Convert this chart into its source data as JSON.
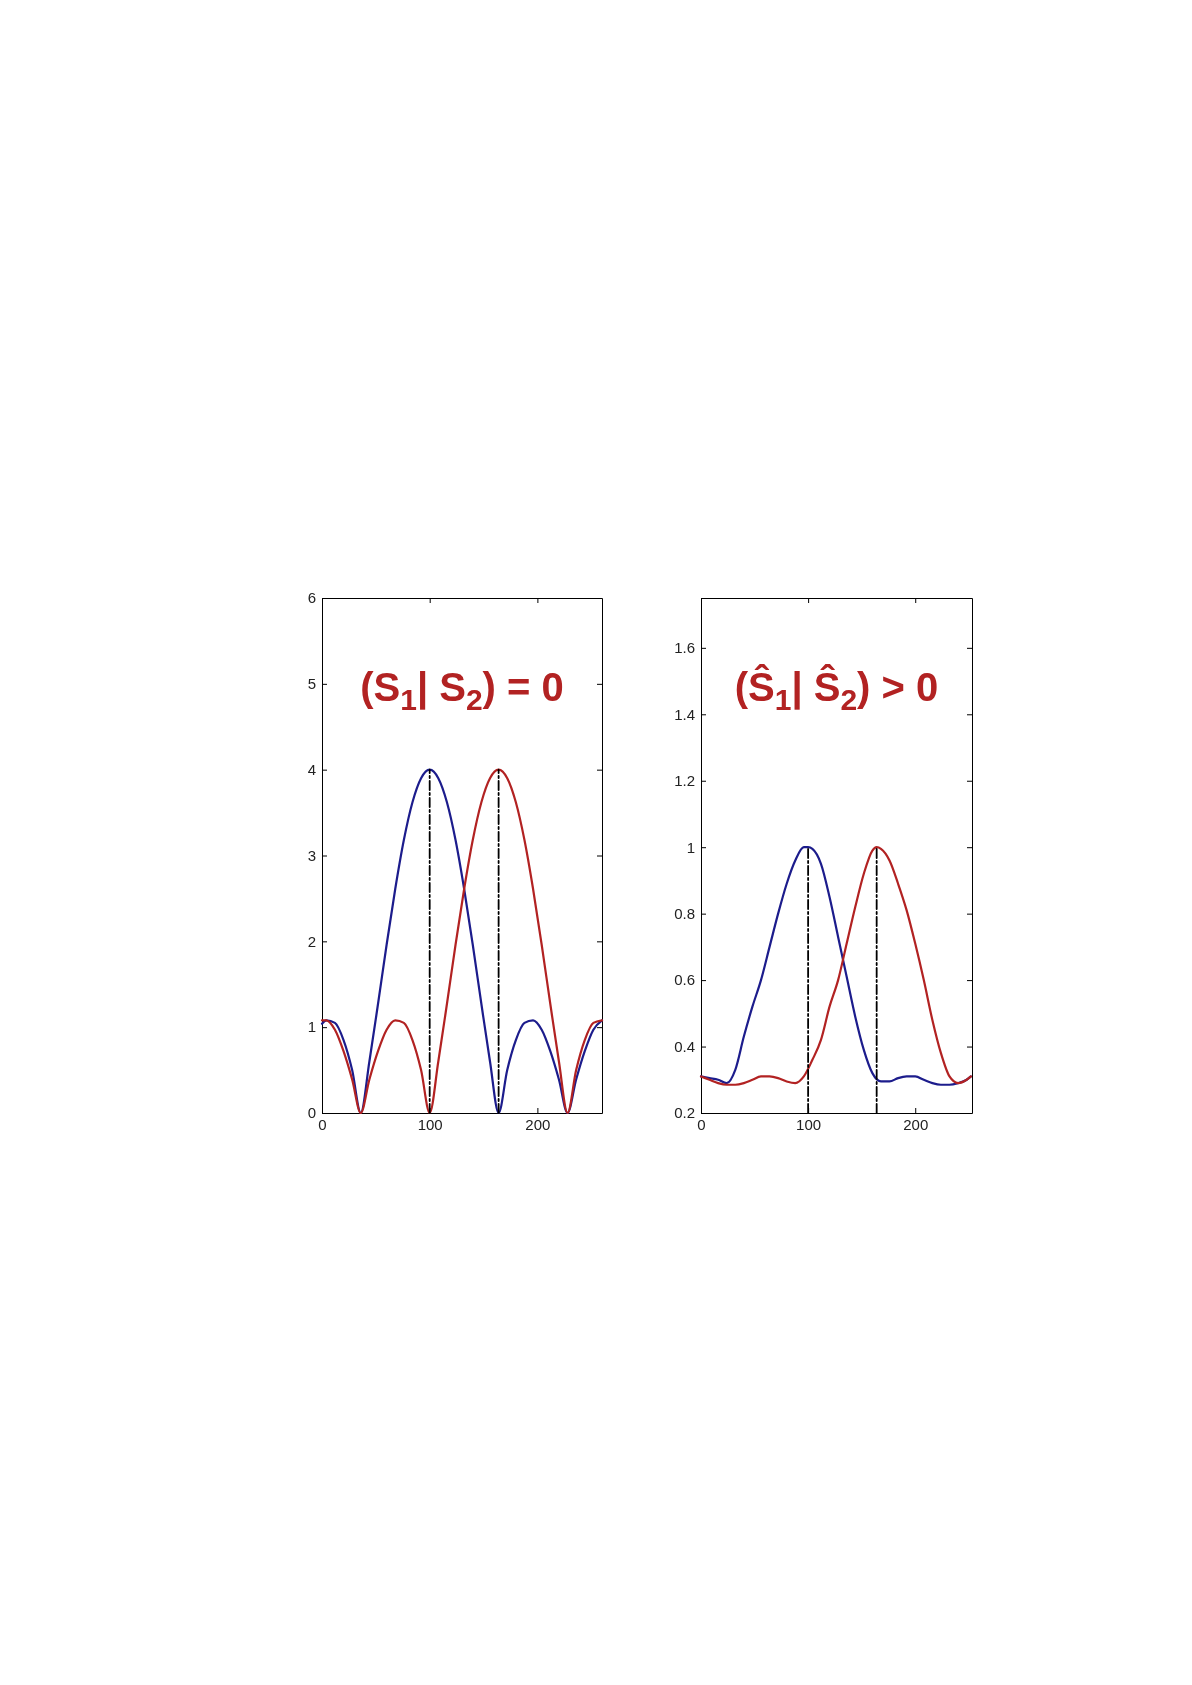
{
  "chart_data": [
    {
      "type": "line",
      "annotations": [
        "(S$_{1}$| S$_{2}$) = 0"
      ],
      "xlim": [
        0,
        260
      ],
      "xticks": [
        0,
        100,
        200
      ],
      "ylim": [
        0,
        6
      ],
      "yticks": [
        0,
        1,
        2,
        3,
        4,
        5,
        6
      ],
      "grid": false,
      "series": [
        {
          "color": "#1c1c8c",
          "x": [
            0,
            4,
            12,
            20,
            28,
            36,
            44,
            52,
            60,
            68,
            76,
            84,
            92,
            100,
            108,
            116,
            124,
            132,
            140,
            148,
            156,
            164,
            172,
            180,
            188,
            196,
            204,
            212,
            220,
            228,
            236,
            244,
            252,
            260
          ],
          "values": [
            1.04,
            1.08,
            1.05,
            0.85,
            0.5,
            0,
            0.6,
            1.27,
            1.96,
            2.61,
            3.18,
            3.62,
            3.9,
            4,
            3.9,
            3.62,
            3.18,
            2.61,
            1.96,
            1.27,
            0.6,
            0,
            0.5,
            0.85,
            1.05,
            1.08,
            0.97,
            0.72,
            0.39,
            0,
            0.39,
            0.72,
            0.97,
            1.08
          ]
        },
        {
          "color": "#b22222",
          "x": [
            0,
            4,
            12,
            20,
            28,
            36,
            44,
            52,
            60,
            68,
            76,
            84,
            92,
            100,
            108,
            116,
            124,
            132,
            140,
            148,
            156,
            164,
            172,
            180,
            188,
            196,
            204,
            212,
            220,
            228,
            236,
            244,
            252,
            260
          ],
          "values": [
            1.08,
            1.08,
            0.97,
            0.72,
            0.39,
            0,
            0.39,
            0.72,
            0.97,
            1.08,
            1.05,
            0.85,
            0.5,
            0,
            0.6,
            1.27,
            1.96,
            2.61,
            3.18,
            3.62,
            3.9,
            4,
            3.9,
            3.62,
            3.18,
            2.61,
            1.96,
            1.27,
            0.6,
            0,
            0.5,
            0.85,
            1.05,
            1.08
          ]
        },
        {
          "color": "#000000",
          "line_style": "dashed",
          "x": [
            100,
            100
          ],
          "values": [
            0,
            4
          ]
        },
        {
          "color": "#000000",
          "line_style": "dashed",
          "x": [
            164,
            164
          ],
          "values": [
            0,
            4
          ]
        }
      ]
    },
    {
      "type": "line",
      "annotations": [
        "(Ŝ$_{1}$| Ŝ$_{2}$) > 0"
      ],
      "xlim": [
        0,
        253
      ],
      "xticks": [
        0,
        100,
        200
      ],
      "ylim": [
        0.2,
        1.75
      ],
      "yticks": [
        0.2,
        0.4,
        0.6,
        0.8,
        1,
        1.2,
        1.4,
        1.6
      ],
      "grid": false,
      "series": [
        {
          "color": "#1c1c8c",
          "x": [
            0,
            8,
            16,
            24,
            32,
            40,
            48,
            56,
            64,
            72,
            80,
            88,
            96,
            100,
            104,
            112,
            120,
            128,
            136,
            144,
            152,
            160,
            168,
            176,
            184,
            192,
            200,
            208,
            216,
            224,
            232,
            240,
            248,
            252
          ],
          "values": [
            0.31,
            0.305,
            0.3,
            0.29,
            0.33,
            0.43,
            0.52,
            0.6,
            0.7,
            0.8,
            0.89,
            0.96,
            1,
            1,
            0.995,
            0.95,
            0.85,
            0.73,
            0.61,
            0.49,
            0.39,
            0.32,
            0.295,
            0.295,
            0.305,
            0.31,
            0.31,
            0.3,
            0.29,
            0.285,
            0.285,
            0.29,
            0.3,
            0.31
          ]
        },
        {
          "color": "#b22222",
          "x": [
            0,
            8,
            16,
            24,
            32,
            40,
            48,
            56,
            64,
            72,
            80,
            88,
            96,
            104,
            112,
            120,
            128,
            136,
            144,
            152,
            160,
            164,
            168,
            176,
            184,
            192,
            200,
            208,
            216,
            224,
            232,
            240,
            248,
            252
          ],
          "values": [
            0.31,
            0.3,
            0.29,
            0.285,
            0.285,
            0.29,
            0.3,
            0.31,
            0.31,
            0.305,
            0.295,
            0.29,
            0.31,
            0.36,
            0.42,
            0.52,
            0.6,
            0.71,
            0.82,
            0.92,
            0.99,
            1,
            0.995,
            0.96,
            0.89,
            0.81,
            0.71,
            0.6,
            0.48,
            0.38,
            0.31,
            0.29,
            0.3,
            0.31
          ]
        },
        {
          "color": "#000000",
          "line_style": "dashed",
          "x": [
            100,
            100
          ],
          "values": [
            0.2,
            1
          ]
        },
        {
          "color": "#000000",
          "line_style": "dashed",
          "x": [
            164,
            164
          ],
          "values": [
            0.2,
            1
          ]
        }
      ]
    }
  ]
}
